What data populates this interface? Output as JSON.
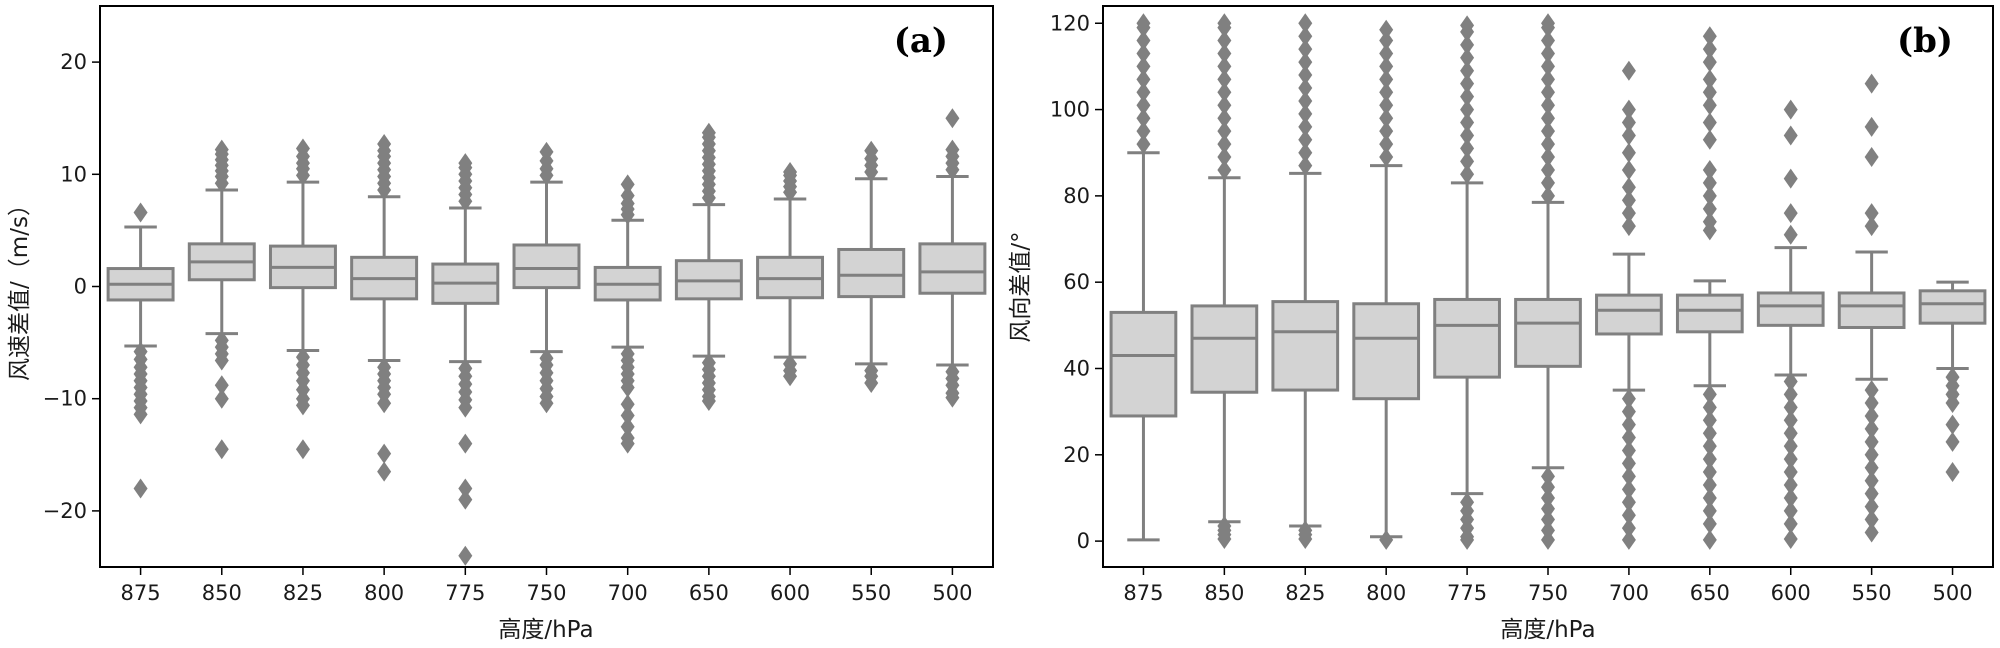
{
  "colors": {
    "box_fill": "#d3d3d3",
    "box_line": "#808080",
    "axis": "#000000",
    "outlier": "#808080"
  },
  "chart_data": [
    {
      "type": "box",
      "panel_label": "(a)",
      "xlabel": "高度/hPa",
      "ylabel": "风速差值/（m/s）",
      "ylim": [
        -25,
        25
      ],
      "yticks": [
        -20,
        -10,
        0,
        10,
        20
      ],
      "ytick_labels": [
        "−20",
        "−10",
        "0",
        "10",
        "20"
      ],
      "categories": [
        "875",
        "850",
        "825",
        "800",
        "775",
        "750",
        "700",
        "650",
        "600",
        "550",
        "500"
      ],
      "boxes": [
        {
          "q1": -1.2,
          "median": 0.2,
          "q3": 1.6,
          "whisker_low": -5.3,
          "whisker_high": 5.3,
          "outliers_high": [
            6.6
          ],
          "outliers_low": [
            -5.8,
            -6.5,
            -7.2,
            -7.8,
            -8.4,
            -9.0,
            -9.6,
            -10.2,
            -10.8,
            -11.4,
            -18.0
          ]
        },
        {
          "q1": 0.6,
          "median": 2.2,
          "q3": 3.8,
          "whisker_low": -4.2,
          "whisker_high": 8.6,
          "outliers_high": [
            9.2,
            9.8,
            10.3,
            10.8,
            11.3,
            11.8,
            12.2
          ],
          "outliers_low": [
            -4.8,
            -5.4,
            -6.0,
            -6.6,
            -8.8,
            -10.0,
            -14.5
          ]
        },
        {
          "q1": -0.1,
          "median": 1.7,
          "q3": 3.6,
          "whisker_low": -5.7,
          "whisker_high": 9.3,
          "outliers_high": [
            9.9,
            10.5,
            11.0,
            11.6,
            12.3
          ],
          "outliers_low": [
            -6.3,
            -7.0,
            -7.7,
            -8.4,
            -9.2,
            -10.0,
            -10.6,
            -14.5
          ]
        },
        {
          "q1": -1.1,
          "median": 0.7,
          "q3": 2.6,
          "whisker_low": -6.6,
          "whisker_high": 8.0,
          "outliers_high": [
            8.6,
            9.2,
            9.8,
            10.4,
            11.0,
            11.6,
            12.1,
            12.7
          ],
          "outliers_low": [
            -7.2,
            -7.8,
            -8.4,
            -9.0,
            -9.6,
            -10.4,
            -14.9,
            -16.5
          ]
        },
        {
          "q1": -1.5,
          "median": 0.3,
          "q3": 2.0,
          "whisker_low": -6.7,
          "whisker_high": 7.0,
          "outliers_high": [
            7.6,
            8.2,
            8.8,
            9.4,
            10.0,
            10.6,
            11.0
          ],
          "outliers_low": [
            -7.3,
            -8.0,
            -8.7,
            -9.4,
            -10.1,
            -10.8,
            -14.0,
            -18.0,
            -19.0,
            -24.0
          ]
        },
        {
          "q1": -0.1,
          "median": 1.6,
          "q3": 3.7,
          "whisker_low": -5.8,
          "whisker_high": 9.3,
          "outliers_high": [
            9.9,
            10.5,
            11.2,
            12.0
          ],
          "outliers_low": [
            -6.4,
            -7.0,
            -7.7,
            -8.4,
            -9.1,
            -9.8,
            -10.4
          ]
        },
        {
          "q1": -1.2,
          "median": 0.2,
          "q3": 1.7,
          "whisker_low": -5.4,
          "whisker_high": 5.9,
          "outliers_high": [
            6.4,
            6.9,
            7.4,
            8.1,
            9.1
          ],
          "outliers_low": [
            -6.0,
            -6.6,
            -7.2,
            -7.8,
            -8.4,
            -9.0,
            -10.5,
            -11.5,
            -12.5,
            -13.5,
            -14.0
          ]
        },
        {
          "q1": -1.1,
          "median": 0.5,
          "q3": 2.3,
          "whisker_low": -6.2,
          "whisker_high": 7.3,
          "outliers_high": [
            7.9,
            8.5,
            9.1,
            9.7,
            10.3,
            10.9,
            11.5,
            12.1,
            12.7,
            13.3,
            13.7
          ],
          "outliers_low": [
            -6.8,
            -7.4,
            -8.0,
            -8.6,
            -9.2,
            -9.8,
            -10.2
          ]
        },
        {
          "q1": -1.0,
          "median": 0.7,
          "q3": 2.6,
          "whisker_low": -6.3,
          "whisker_high": 7.8,
          "outliers_high": [
            8.4,
            8.9,
            9.4,
            9.9,
            10.2
          ],
          "outliers_low": [
            -6.9,
            -7.5,
            -8.0
          ]
        },
        {
          "q1": -0.9,
          "median": 1.0,
          "q3": 3.3,
          "whisker_low": -6.9,
          "whisker_high": 9.6,
          "outliers_high": [
            10.2,
            10.8,
            11.4,
            12.1
          ],
          "outliers_low": [
            -7.5,
            -8.0,
            -8.6
          ]
        },
        {
          "q1": -0.6,
          "median": 1.3,
          "q3": 3.8,
          "whisker_low": -7.0,
          "whisker_high": 9.8,
          "outliers_high": [
            10.4,
            11.0,
            11.6,
            12.2,
            15.0
          ],
          "outliers_low": [
            -7.6,
            -8.2,
            -8.8,
            -9.5,
            -9.9
          ]
        }
      ]
    },
    {
      "type": "box",
      "panel_label": "(b)",
      "xlabel": "高度/hPa",
      "ylabel": "风向差值/°",
      "ylim": [
        -6,
        124
      ],
      "yticks": [
        0,
        20,
        40,
        60,
        80,
        100,
        120
      ],
      "ytick_labels": [
        "0",
        "20",
        "40",
        "60",
        "80",
        "100",
        "120"
      ],
      "categories": [
        "875",
        "850",
        "825",
        "800",
        "775",
        "750",
        "700",
        "650",
        "600",
        "550",
        "500"
      ],
      "boxes": [
        {
          "q1": 29,
          "median": 43,
          "q3": 53,
          "whisker_low": 0.3,
          "whisker_high": 90,
          "outliers_high": [
            92,
            95,
            98,
            101,
            104,
            107,
            110,
            113,
            116,
            119,
            120
          ],
          "outliers_low": []
        },
        {
          "q1": 34.5,
          "median": 47,
          "q3": 54.5,
          "whisker_low": 4.5,
          "whisker_high": 84.2,
          "outliers_high": [
            86,
            89,
            92,
            95,
            98,
            101,
            104,
            107,
            110,
            113,
            116,
            119,
            120
          ],
          "outliers_low": [
            3.5,
            2.5,
            1.5,
            0.5
          ]
        },
        {
          "q1": 35,
          "median": 48.5,
          "q3": 55.5,
          "whisker_low": 3.5,
          "whisker_high": 85.2,
          "outliers_high": [
            87,
            90,
            93,
            96,
            99,
            102,
            105,
            108,
            111,
            114,
            117,
            120
          ],
          "outliers_low": [
            2.5,
            1.5,
            0.5
          ]
        },
        {
          "q1": 33,
          "median": 47,
          "q3": 55,
          "whisker_low": 1,
          "whisker_high": 87,
          "outliers_high": [
            89,
            92,
            95,
            98,
            101,
            104,
            107,
            110,
            113,
            116,
            118.5
          ],
          "outliers_low": [
            0.3
          ]
        },
        {
          "q1": 38,
          "median": 50,
          "q3": 56,
          "whisker_low": 11,
          "whisker_high": 83,
          "outliers_high": [
            85,
            88,
            91,
            94,
            97,
            100,
            103,
            106,
            109,
            112,
            115,
            118,
            119.5
          ],
          "outliers_low": [
            9,
            7,
            5,
            3,
            1,
            0.3
          ]
        },
        {
          "q1": 40.5,
          "median": 50.5,
          "q3": 56,
          "whisker_low": 17,
          "whisker_high": 78.5,
          "outliers_high": [
            80,
            83,
            86,
            89,
            92,
            95,
            98,
            101,
            104,
            107,
            110,
            113,
            116,
            119,
            120
          ],
          "outliers_low": [
            15,
            12.5,
            10,
            7.5,
            5,
            2.5,
            0.3
          ]
        },
        {
          "q1": 48,
          "median": 53.5,
          "q3": 57,
          "whisker_low": 35,
          "whisker_high": 66.5,
          "outliers_high": [
            73,
            76,
            79,
            82,
            86,
            90,
            94,
            97,
            100,
            109
          ],
          "outliers_low": [
            33,
            30,
            27,
            24,
            21,
            18,
            15,
            12,
            9,
            6,
            3,
            0.3
          ]
        },
        {
          "q1": 48.5,
          "median": 53.5,
          "q3": 57,
          "whisker_low": 36,
          "whisker_high": 60.3,
          "outliers_high": [
            72,
            74,
            77,
            80,
            83,
            86,
            93,
            97,
            101,
            104,
            107,
            111,
            114,
            117
          ],
          "outliers_low": [
            34,
            31,
            28,
            25,
            22,
            19,
            16,
            13,
            10,
            7,
            4,
            0.3
          ]
        },
        {
          "q1": 50,
          "median": 54.5,
          "q3": 57.5,
          "whisker_low": 38.5,
          "whisker_high": 68,
          "outliers_high": [
            71,
            76,
            84,
            94,
            100
          ],
          "outliers_low": [
            37,
            34,
            31,
            28,
            25,
            22,
            19,
            16,
            13,
            10,
            7,
            4,
            0.5
          ]
        },
        {
          "q1": 49.5,
          "median": 54.5,
          "q3": 57.5,
          "whisker_low": 37.5,
          "whisker_high": 67,
          "outliers_high": [
            73,
            76,
            89,
            96,
            106
          ],
          "outliers_low": [
            35,
            32,
            29,
            26,
            23,
            20,
            17,
            14,
            11,
            8,
            5,
            2
          ]
        },
        {
          "q1": 50.5,
          "median": 55,
          "q3": 58,
          "whisker_low": 40,
          "whisker_high": 60,
          "outliers_high": [],
          "outliers_low": [
            38,
            36,
            34,
            32,
            27,
            23,
            16
          ]
        }
      ]
    }
  ]
}
